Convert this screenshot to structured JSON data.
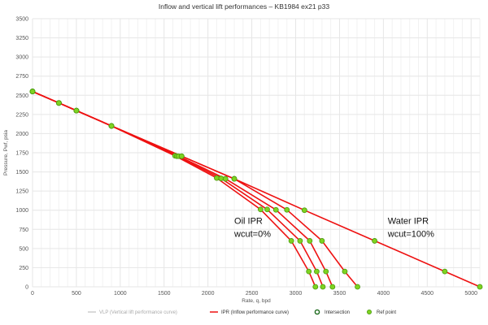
{
  "chart_data": {
    "type": "line",
    "title": "Inflow and vertical lift performances – KB1984 ex21 p33",
    "xlabel": "Rate, q, bpd",
    "ylabel": "Pressure, Pwf, psia",
    "xlim": [
      0,
      5100
    ],
    "ylim": [
      0,
      3500
    ],
    "x_ticks": [
      "0",
      "500",
      "1000",
      "1500",
      "2000",
      "2500",
      "3000",
      "3500",
      "4000",
      "4500",
      "5000"
    ],
    "y_ticks": [
      "0",
      "250",
      "500",
      "750",
      "1000",
      "1250",
      "1500",
      "1750",
      "2000",
      "2250",
      "2500",
      "2750",
      "3000",
      "3250",
      "3500"
    ],
    "grid": true,
    "colors": {
      "ipr": "#ee1111",
      "ref_point": "#7ed321",
      "ref_point_edge": "#4a9a10",
      "intersection_edge": "#1d6a1d",
      "vlp": "#cccccc"
    },
    "series": [
      {
        "points": [
          [
            0,
            2550
          ],
          [
            300,
            2400
          ],
          [
            500,
            2300
          ],
          [
            900,
            2100
          ],
          [
            1625,
            1710
          ],
          [
            2100,
            1420
          ],
          [
            2600,
            1010
          ],
          [
            2950,
            600
          ],
          [
            3150,
            200
          ],
          [
            3225,
            0
          ]
        ]
      },
      {
        "points": [
          [
            0,
            2550
          ],
          [
            300,
            2400
          ],
          [
            500,
            2300
          ],
          [
            900,
            2100
          ],
          [
            1645,
            1705
          ],
          [
            2150,
            1415
          ],
          [
            2675,
            1010
          ],
          [
            3050,
            600
          ],
          [
            3240,
            200
          ],
          [
            3310,
            0
          ]
        ]
      },
      {
        "points": [
          [
            0,
            2550
          ],
          [
            300,
            2400
          ],
          [
            500,
            2300
          ],
          [
            900,
            2100
          ],
          [
            1665,
            1705
          ],
          [
            2200,
            1410
          ],
          [
            2775,
            1005
          ],
          [
            3160,
            600
          ],
          [
            3345,
            200
          ],
          [
            3420,
            0
          ]
        ]
      },
      {
        "points": [
          [
            0,
            2550
          ],
          [
            300,
            2400
          ],
          [
            500,
            2300
          ],
          [
            900,
            2100
          ],
          [
            1700,
            1705
          ],
          [
            2300,
            1410
          ],
          [
            2900,
            1005
          ],
          [
            3300,
            600
          ],
          [
            3560,
            200
          ],
          [
            3705,
            0
          ]
        ]
      },
      {
        "points": [
          [
            0,
            2550
          ],
          [
            300,
            2400
          ],
          [
            500,
            2300
          ],
          [
            900,
            2100
          ],
          [
            1700,
            1705
          ],
          [
            2300,
            1410
          ],
          [
            3100,
            1000
          ],
          [
            3900,
            600
          ],
          [
            4700,
            200
          ],
          [
            5100,
            0
          ]
        ]
      }
    ],
    "annotations": [
      {
        "line1": "Oil IPR",
        "line2": "wcut=0%",
        "x": 2300,
        "y": 800
      },
      {
        "line1": "Water IPR",
        "line2": "wcut=100%",
        "x": 4050,
        "y": 800
      }
    ],
    "legend": {
      "position": "bottom",
      "items": [
        {
          "label": "VLP (Vertical lift performance curve)",
          "kind": "line-dim"
        },
        {
          "label": "IPR (Inflow performance curve)",
          "kind": "line"
        },
        {
          "label": "Intersection",
          "kind": "marker-ring"
        },
        {
          "label": "Ref point",
          "kind": "marker"
        }
      ]
    }
  }
}
